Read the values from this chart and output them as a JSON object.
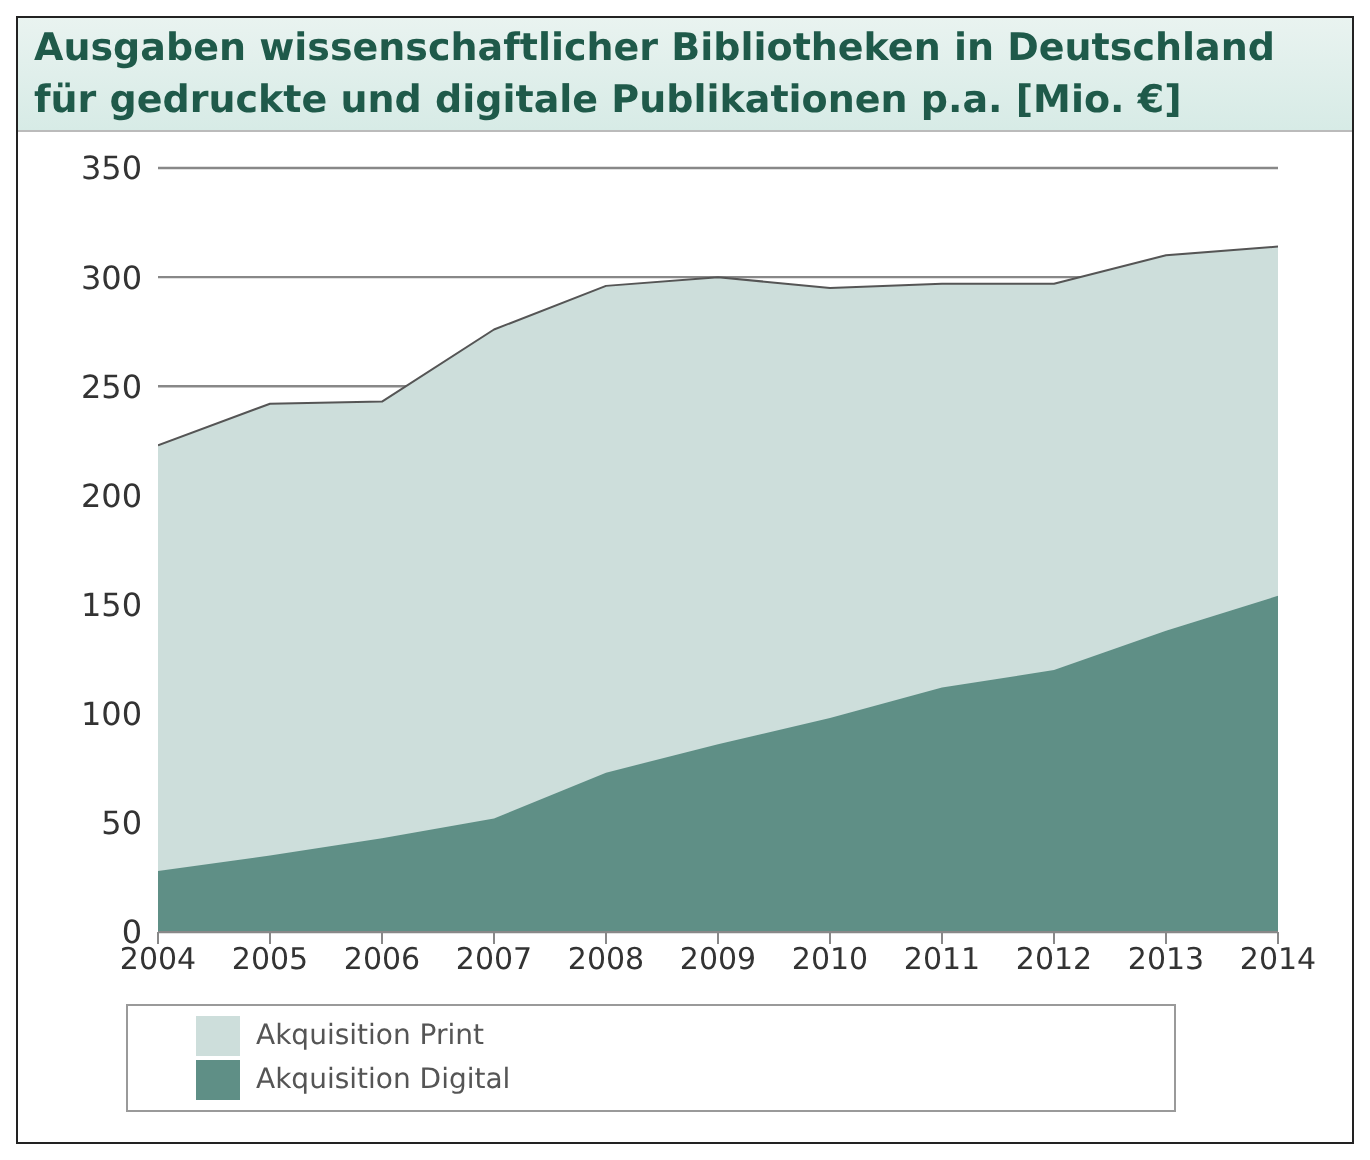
{
  "chart_data": {
    "type": "area",
    "stacked": true,
    "title": "Ausgaben wissenschaftlicher Bibliotheken in Deutschland für gedruckte und digitale Publikationen p.a. [Mio. €]",
    "categories": [
      "2004",
      "2005",
      "2006",
      "2007",
      "2008",
      "2009",
      "2010",
      "2011",
      "2012",
      "2013",
      "2014"
    ],
    "series": [
      {
        "name": "Akquisition Digital",
        "color": "#5f8f86",
        "values": [
          28,
          35,
          43,
          52,
          73,
          86,
          98,
          112,
          120,
          138,
          154
        ]
      },
      {
        "name": "Akquisition Print",
        "color": "#cddedb",
        "values": [
          195,
          207,
          200,
          224,
          223,
          214,
          197,
          185,
          177,
          172,
          160
        ]
      }
    ],
    "ylim": [
      0,
      350
    ],
    "yticks": [
      0,
      50,
      100,
      150,
      200,
      250,
      300,
      350
    ],
    "grid": "y",
    "legend": "bottom"
  }
}
